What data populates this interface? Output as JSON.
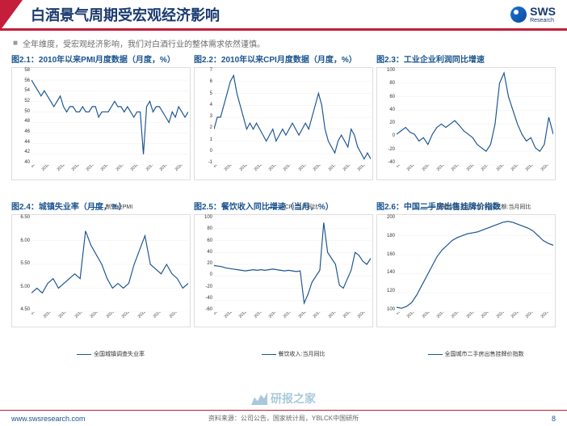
{
  "header": {
    "title": "白酒景气周期受宏观经济影响",
    "logo_text": "SWS",
    "logo_sub": "Research"
  },
  "subtitle": "全年维度，受宏观经济影响，我们对白酒行业的整体需求依然谨慎。",
  "charts": [
    {
      "title": "图2.1：2010年以来PMI月度数据（月度，%）",
      "ylim": [
        40,
        58
      ],
      "yticks": [
        40,
        42,
        44,
        46,
        48,
        50,
        52,
        54,
        56,
        58
      ],
      "xlabels": [
        "2010-01",
        "2010-03",
        "2011-03",
        "2012-05",
        "2013-05",
        "2014-07",
        "2015-09",
        "2016-09",
        "2017-11",
        "2019-01",
        "2020-01",
        "2020-03",
        "2021-05",
        "2022-05",
        "2023-05"
      ],
      "series": [
        {
          "color": "#1a5490",
          "legend": "制造业PMI",
          "data": [
            56,
            55,
            54,
            53,
            54,
            53,
            52,
            51,
            52,
            53,
            51,
            50,
            51,
            51,
            50,
            50,
            51,
            50,
            50,
            51,
            51,
            49,
            50,
            50,
            50,
            51,
            52,
            51,
            51,
            50,
            51,
            50,
            49,
            50,
            50,
            42,
            51,
            52,
            50,
            51,
            51,
            50,
            49,
            48,
            50,
            49,
            51,
            50,
            49,
            50
          ]
        }
      ]
    },
    {
      "title": "图2.2：2010年以来CPI月度数据（月度，%）",
      "ylim": [
        -1,
        7
      ],
      "yticks": [
        -1,
        0,
        1,
        2,
        3,
        4,
        5,
        6,
        7
      ],
      "xlabels": [
        "2010-01",
        "2010-09",
        "2011-05",
        "2012-03",
        "2013-03",
        "2014-07",
        "2015-07",
        "2016-05",
        "2017-05",
        "2018-05",
        "2019-05",
        "2020-05",
        "2021-05",
        "2022-05",
        "2023-05"
      ],
      "series": [
        {
          "color": "#1a5490",
          "legend": "CPI:当月同比",
          "data": [
            2,
            3,
            3,
            4,
            5,
            6,
            6.5,
            5,
            4,
            3,
            2,
            2.5,
            2,
            2.5,
            2,
            1.5,
            1,
            1.5,
            2,
            1,
            1.5,
            2,
            1.5,
            2,
            2.5,
            2,
            1.5,
            2,
            2.5,
            2,
            3,
            4,
            5,
            4,
            2,
            1,
            0.5,
            0,
            1,
            1.5,
            1,
            0.5,
            2,
            1.5,
            0.5,
            0,
            -0.5,
            0,
            -0.5
          ]
        }
      ]
    },
    {
      "title": "图2.3：工业企业利润同比增速",
      "ylim": [
        -40,
        100
      ],
      "yticks": [
        -40,
        -20,
        0,
        20,
        40,
        60,
        80,
        100
      ],
      "xlabels": [
        "2012-12",
        "2013-09",
        "2014-06",
        "2015-03",
        "2015-06",
        "2016-09",
        "2017-06",
        "2018-03",
        "2018-12",
        "2019-09",
        "2020-06",
        "2021-03",
        "2021-12",
        "2022-09",
        "2023-09"
      ],
      "series": [
        {
          "color": "#1a5490",
          "legend": "规模以上工业企业:利润总额:当月同比",
          "data": [
            5,
            10,
            15,
            8,
            5,
            -5,
            0,
            -10,
            5,
            15,
            20,
            15,
            20,
            25,
            18,
            10,
            5,
            0,
            -10,
            -15,
            -20,
            -10,
            20,
            80,
            95,
            60,
            40,
            20,
            5,
            -5,
            0,
            -15,
            -20,
            -10,
            30,
            5
          ]
        }
      ]
    },
    {
      "title": "图2.4：城镇失业率（月度，%）",
      "ylim": [
        4.5,
        6.5
      ],
      "yticks": [
        "4.50",
        "5.00",
        "5.50",
        "6.00",
        "6.50"
      ],
      "xlabels": [
        "2018-06",
        "2018-09",
        "2019-06",
        "2019-12",
        "2020-06",
        "2021-09",
        "2022-03",
        "2022-09",
        "2023-05",
        "2023-11"
      ],
      "series": [
        {
          "color": "#1a5490",
          "legend": "全国城镇调查失业率",
          "data": [
            4.9,
            5.0,
            4.9,
            5.1,
            5.2,
            5.0,
            5.1,
            5.2,
            5.3,
            5.2,
            6.2,
            5.9,
            5.7,
            5.5,
            5.2,
            5.0,
            5.1,
            5.0,
            5.1,
            5.5,
            5.8,
            6.1,
            5.5,
            5.4,
            5.3,
            5.5,
            5.3,
            5.2,
            5.0,
            5.1
          ]
        }
      ]
    },
    {
      "title": "图2.5：餐饮收入同比增速（当月，%）",
      "ylim": [
        -60,
        100
      ],
      "yticks": [
        -60,
        -40,
        -20,
        0,
        20,
        40,
        60,
        80,
        100
      ],
      "xlabels": [
        "2010-06",
        "2011-06",
        "2012-06",
        "2013-06",
        "2014-06",
        "2015-06",
        "2016-06",
        "2017-06",
        "2018-06",
        "2019-06",
        "2020-06",
        "2021-06",
        "2022-06",
        "2023-10"
      ],
      "series": [
        {
          "color": "#1a5490",
          "legend": "餐饮收入:当月同比",
          "data": [
            18,
            17,
            16,
            14,
            13,
            12,
            11,
            10,
            9,
            10,
            11,
            10,
            11,
            10,
            11,
            12,
            11,
            10,
            9,
            10,
            9,
            8,
            9,
            -45,
            -30,
            -10,
            0,
            10,
            90,
            40,
            30,
            20,
            -15,
            -20,
            -5,
            10,
            40,
            35,
            25,
            20,
            30
          ]
        }
      ]
    },
    {
      "title": "图2.6：中国二手房出售挂牌价指数",
      "ylim": [
        100,
        200
      ],
      "yticks": [
        100,
        120,
        140,
        160,
        180,
        200
      ],
      "xlabels": [
        "2015-01",
        "2015-07",
        "2016-01",
        "2017-01",
        "2018-01",
        "2019-01",
        "2020-01",
        "2021-01",
        "2022-01",
        "2023-01",
        "2023-07",
        "2024-01"
      ],
      "series": [
        {
          "color": "#1a5490",
          "legend": "全国城市二手房出售挂牌价指数",
          "data": [
            105,
            104,
            106,
            110,
            118,
            128,
            138,
            148,
            158,
            165,
            170,
            175,
            178,
            180,
            182,
            183,
            184,
            186,
            188,
            190,
            192,
            194,
            195,
            194,
            192,
            190,
            188,
            185,
            180,
            175,
            172,
            170
          ]
        }
      ]
    }
  ],
  "footer": {
    "left": "www.swsresearch.com",
    "center": "资料来源：公司公告，国家统计局，YBLCK中国研所",
    "page": "8"
  },
  "watermark": "研报之家"
}
